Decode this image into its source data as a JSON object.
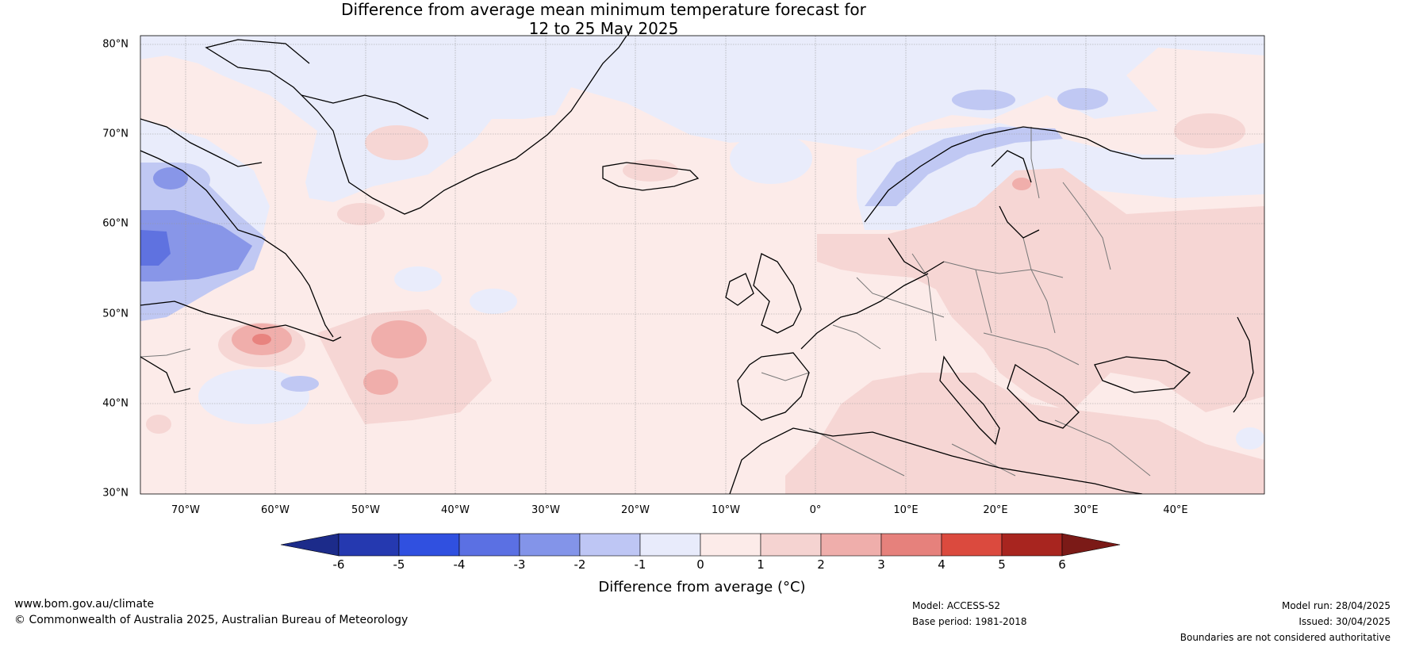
{
  "title": {
    "line1": "Difference from average mean minimum temperature forecast for",
    "line2": "12 to 25 May 2025"
  },
  "map": {
    "lat_labels": [
      "80°N",
      "70°N",
      "60°N",
      "50°N",
      "40°N",
      "30°N"
    ],
    "lon_labels": [
      "70°W",
      "60°W",
      "50°W",
      "40°W",
      "30°W",
      "20°W",
      "10°W",
      "0°",
      "10°E",
      "20°E",
      "30°E",
      "40°E"
    ],
    "colors": {
      "ocean_neutral_warm": "#fcebe9",
      "slight_cool": "#e9ecfb",
      "cool_1": "#c0c8f3",
      "cool_2": "#8896e8",
      "cool_3": "#5f72e0",
      "warm_1": "#f6d6d4",
      "warm_2": "#f0aeab",
      "warm_3": "#e8837f",
      "coast": "#000000",
      "border": "#777777"
    }
  },
  "colorbar": {
    "ticks": [
      "-6",
      "-5",
      "-4",
      "-3",
      "-2",
      "-1",
      "0",
      "1",
      "2",
      "3",
      "4",
      "5",
      "6"
    ],
    "colors": [
      "#1c2b8a",
      "#2539b0",
      "#3050e0",
      "#5b70e3",
      "#8394e9",
      "#bec6f4",
      "#e8ebfb",
      "#fcebe9",
      "#f5d3d1",
      "#efaeab",
      "#e6817c",
      "#db4a3e",
      "#a8251f",
      "#7b1a17"
    ],
    "label": "Difference from average (°C)"
  },
  "footer": {
    "website": "www.bom.gov.au/climate",
    "copyright": "© Commonwealth of Australia 2025, Australian Bureau of Meteorology",
    "model": "Model: ACCESS-S2",
    "base_period": "Base period: 1981-2018",
    "model_run": "Model run: 28/04/2025",
    "issued": "Issued: 30/04/2025",
    "disclaimer": "Boundaries are not considered authoritative"
  }
}
